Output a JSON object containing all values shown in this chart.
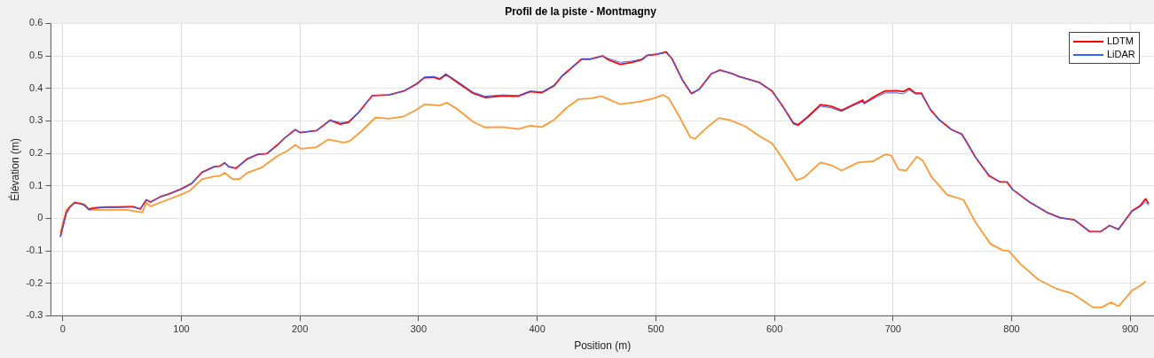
{
  "chart_data": {
    "type": "line",
    "title": "Profil de la piste - Montmagny",
    "xlabel": "Position (m)",
    "ylabel": "Élévation (m)",
    "xlim": [
      -10,
      920
    ],
    "xticks": [
      0,
      100,
      200,
      300,
      400,
      500,
      600,
      700,
      800,
      900
    ],
    "ylim": [
      -0.3,
      0.6
    ],
    "yticks": [
      -0.3,
      -0.2,
      -0.1,
      0,
      0.1,
      0.2,
      0.3,
      0.4,
      0.5,
      0.6
    ],
    "grid": true,
    "legend": "top right",
    "marker": "none",
    "line_style": "solid",
    "series": [
      {
        "color": "#ff9933",
        "x": [
          -2,
          3,
          10,
          18.5,
          22,
          36,
          54,
          62,
          67,
          70.5,
          74,
          89.5,
          99.7,
          107,
          117.5,
          127.7,
          132.7,
          136.5,
          143,
          149,
          155.6,
          168,
          181,
          190,
          196,
          201,
          214,
          224,
          237,
          242,
          252,
          263.5,
          275,
          287.6,
          297.7,
          305,
          317.8,
          324,
          333,
          346,
          356,
          371,
          384,
          394,
          404,
          414.5,
          424.7,
          435,
          445,
          454,
          460,
          470,
          485.5,
          498,
          506,
          511,
          520,
          529,
          533,
          542,
          553,
          562,
          575,
          587,
          598,
          607,
          618.5,
          625,
          638.8,
          647.7,
          656.6,
          670.6,
          683.2,
          693.4,
          698.5,
          704.8,
          711,
          720,
          725,
          732.7,
          745.4,
          759.4,
          769.5,
          782.2,
          792.4,
          797.5,
          807.6,
          822.8,
          838,
          850.8,
          861,
          868.5,
          876,
          883.8,
          890,
          901.5,
          908,
          913
        ],
        "values": [
          -0.046,
          0.026,
          0.05,
          0.043,
          0.026,
          0.026,
          0.026,
          0.021,
          0.018,
          0.048,
          0.037,
          0.059,
          0.073,
          0.085,
          0.121,
          0.129,
          0.131,
          0.14,
          0.121,
          0.121,
          0.14,
          0.157,
          0.192,
          0.209,
          0.226,
          0.214,
          0.219,
          0.243,
          0.233,
          0.238,
          0.269,
          0.31,
          0.307,
          0.314,
          0.333,
          0.351,
          0.347,
          0.356,
          0.335,
          0.297,
          0.28,
          0.281,
          0.275,
          0.285,
          0.281,
          0.304,
          0.34,
          0.367,
          0.369,
          0.376,
          0.367,
          0.351,
          0.359,
          0.369,
          0.38,
          0.369,
          0.312,
          0.25,
          0.245,
          0.276,
          0.309,
          0.303,
          0.284,
          0.254,
          0.231,
          0.183,
          0.117,
          0.126,
          0.172,
          0.164,
          0.147,
          0.172,
          0.176,
          0.197,
          0.193,
          0.15,
          0.147,
          0.19,
          0.178,
          0.126,
          0.073,
          0.057,
          -0.012,
          -0.079,
          -0.098,
          -0.1,
          -0.141,
          -0.189,
          -0.217,
          -0.231,
          -0.255,
          -0.274,
          -0.274,
          -0.258,
          -0.271,
          -0.222,
          -0.208,
          -0.194
        ]
      },
      {
        "name": "LDTM",
        "color": "#ff0000",
        "x": [
          -2,
          1,
          3,
          6,
          10,
          15,
          18.5,
          22,
          26,
          36,
          46,
          59,
          65.5,
          70.5,
          74,
          82,
          89.5,
          99.7,
          108.6,
          117.5,
          127.7,
          132.7,
          136.5,
          140,
          146,
          155.6,
          164.5,
          172,
          181,
          187,
          196,
          200,
          214,
          225.4,
          234,
          240.6,
          249.5,
          261,
          275,
          287.6,
          297.7,
          305,
          312.7,
          317.8,
          323,
          333,
          346,
          356,
          371,
          384,
          394,
          404,
          414.5,
          421,
          437.4,
          445,
          455,
          460,
          470,
          480,
          488,
          493,
          501,
          508.7,
          513.5,
          522.4,
          530,
          536.6,
          546.8,
          554,
          564.6,
          569.7,
          587.5,
          598,
          607,
          616,
          620,
          627.4,
          638.8,
          647.7,
          656.6,
          665.5,
          674.4,
          675.6,
          685.8,
          693.4,
          703.6,
          708.6,
          713.7,
          718.8,
          723.9,
          731.5,
          739,
          749.2,
          758,
          762,
          769.5,
          781,
          790,
          796,
          801,
          815,
          830.5,
          840.6,
          853,
          866,
          875,
          882.5,
          890,
          901.5,
          908,
          913,
          915.5
        ],
        "values": [
          -0.057,
          -0.012,
          0.016,
          0.035,
          0.048,
          0.045,
          0.04,
          0.028,
          0.032,
          0.035,
          0.035,
          0.036,
          0.029,
          0.057,
          0.05,
          0.066,
          0.075,
          0.09,
          0.107,
          0.142,
          0.159,
          0.161,
          0.171,
          0.159,
          0.154,
          0.183,
          0.197,
          0.199,
          0.226,
          0.247,
          0.273,
          0.264,
          0.27,
          0.302,
          0.29,
          0.295,
          0.326,
          0.378,
          0.38,
          0.392,
          0.412,
          0.433,
          0.434,
          0.428,
          0.443,
          0.418,
          0.385,
          0.372,
          0.377,
          0.376,
          0.39,
          0.387,
          0.409,
          0.438,
          0.49,
          0.49,
          0.5,
          0.488,
          0.474,
          0.48,
          0.488,
          0.502,
          0.505,
          0.512,
          0.492,
          0.426,
          0.384,
          0.397,
          0.445,
          0.456,
          0.445,
          0.437,
          0.418,
          0.392,
          0.345,
          0.293,
          0.288,
          0.31,
          0.35,
          0.345,
          0.332,
          0.348,
          0.364,
          0.355,
          0.378,
          0.392,
          0.393,
          0.39,
          0.4,
          0.385,
          0.385,
          0.335,
          0.303,
          0.273,
          0.259,
          0.235,
          0.188,
          0.131,
          0.112,
          0.112,
          0.088,
          0.05,
          0.017,
          0.002,
          -0.005,
          -0.041,
          -0.041,
          -0.022,
          -0.034,
          0.023,
          0.038,
          0.06,
          0.045
        ]
      },
      {
        "name": "LiDAR",
        "color": "#3366ff",
        "x": [
          -2,
          1,
          3,
          6,
          10,
          15,
          18.5,
          22,
          26,
          36,
          46,
          59,
          65.5,
          70.5,
          74,
          82,
          89.5,
          99.7,
          108.6,
          117.5,
          127.7,
          132.7,
          136.5,
          140,
          146,
          155.6,
          164.5,
          172,
          181,
          187,
          196,
          200,
          214,
          225.4,
          234,
          240.6,
          249.5,
          261,
          275,
          287.6,
          297.7,
          305,
          312.7,
          317.8,
          323,
          333,
          346,
          356,
          371,
          384,
          394,
          404,
          414.5,
          421,
          437.4,
          445,
          455,
          460,
          470,
          480,
          488,
          493,
          501,
          508.7,
          513.5,
          522.4,
          530,
          536.6,
          546.8,
          554,
          564.6,
          569.7,
          587.5,
          598,
          607,
          616,
          620,
          627.4,
          638.8,
          647.7,
          656.6,
          665.5,
          674.4,
          675.6,
          685.8,
          693.4,
          703.6,
          708.6,
          713.7,
          718.8,
          723.9,
          731.5,
          739,
          749.2,
          758,
          762,
          769.5,
          781,
          790,
          796,
          801,
          815,
          830.5,
          840.6,
          853,
          866,
          875,
          882.5,
          890,
          901.5,
          908,
          913,
          915.5
        ],
        "values": [
          -0.057,
          -0.012,
          0.016,
          0.035,
          0.048,
          0.045,
          0.04,
          0.026,
          0.03,
          0.033,
          0.033,
          0.035,
          0.029,
          0.057,
          0.05,
          0.066,
          0.075,
          0.09,
          0.107,
          0.142,
          0.159,
          0.161,
          0.171,
          0.159,
          0.154,
          0.183,
          0.197,
          0.199,
          0.226,
          0.247,
          0.273,
          0.264,
          0.27,
          0.302,
          0.295,
          0.297,
          0.326,
          0.378,
          0.38,
          0.392,
          0.414,
          0.435,
          0.437,
          0.431,
          0.445,
          0.421,
          0.388,
          0.376,
          0.38,
          0.378,
          0.392,
          0.389,
          0.411,
          0.44,
          0.49,
          0.49,
          0.499,
          0.492,
          0.48,
          0.484,
          0.49,
          0.502,
          0.505,
          0.51,
          0.492,
          0.426,
          0.386,
          0.397,
          0.445,
          0.456,
          0.445,
          0.437,
          0.418,
          0.392,
          0.345,
          0.29,
          0.285,
          0.307,
          0.345,
          0.34,
          0.329,
          0.345,
          0.359,
          0.352,
          0.373,
          0.386,
          0.386,
          0.383,
          0.395,
          0.383,
          0.383,
          0.335,
          0.303,
          0.273,
          0.259,
          0.235,
          0.188,
          0.131,
          0.112,
          0.112,
          0.088,
          0.05,
          0.017,
          0.002,
          -0.005,
          -0.041,
          -0.041,
          -0.022,
          -0.034,
          0.021,
          0.035,
          0.05,
          0.04
        ]
      }
    ]
  }
}
